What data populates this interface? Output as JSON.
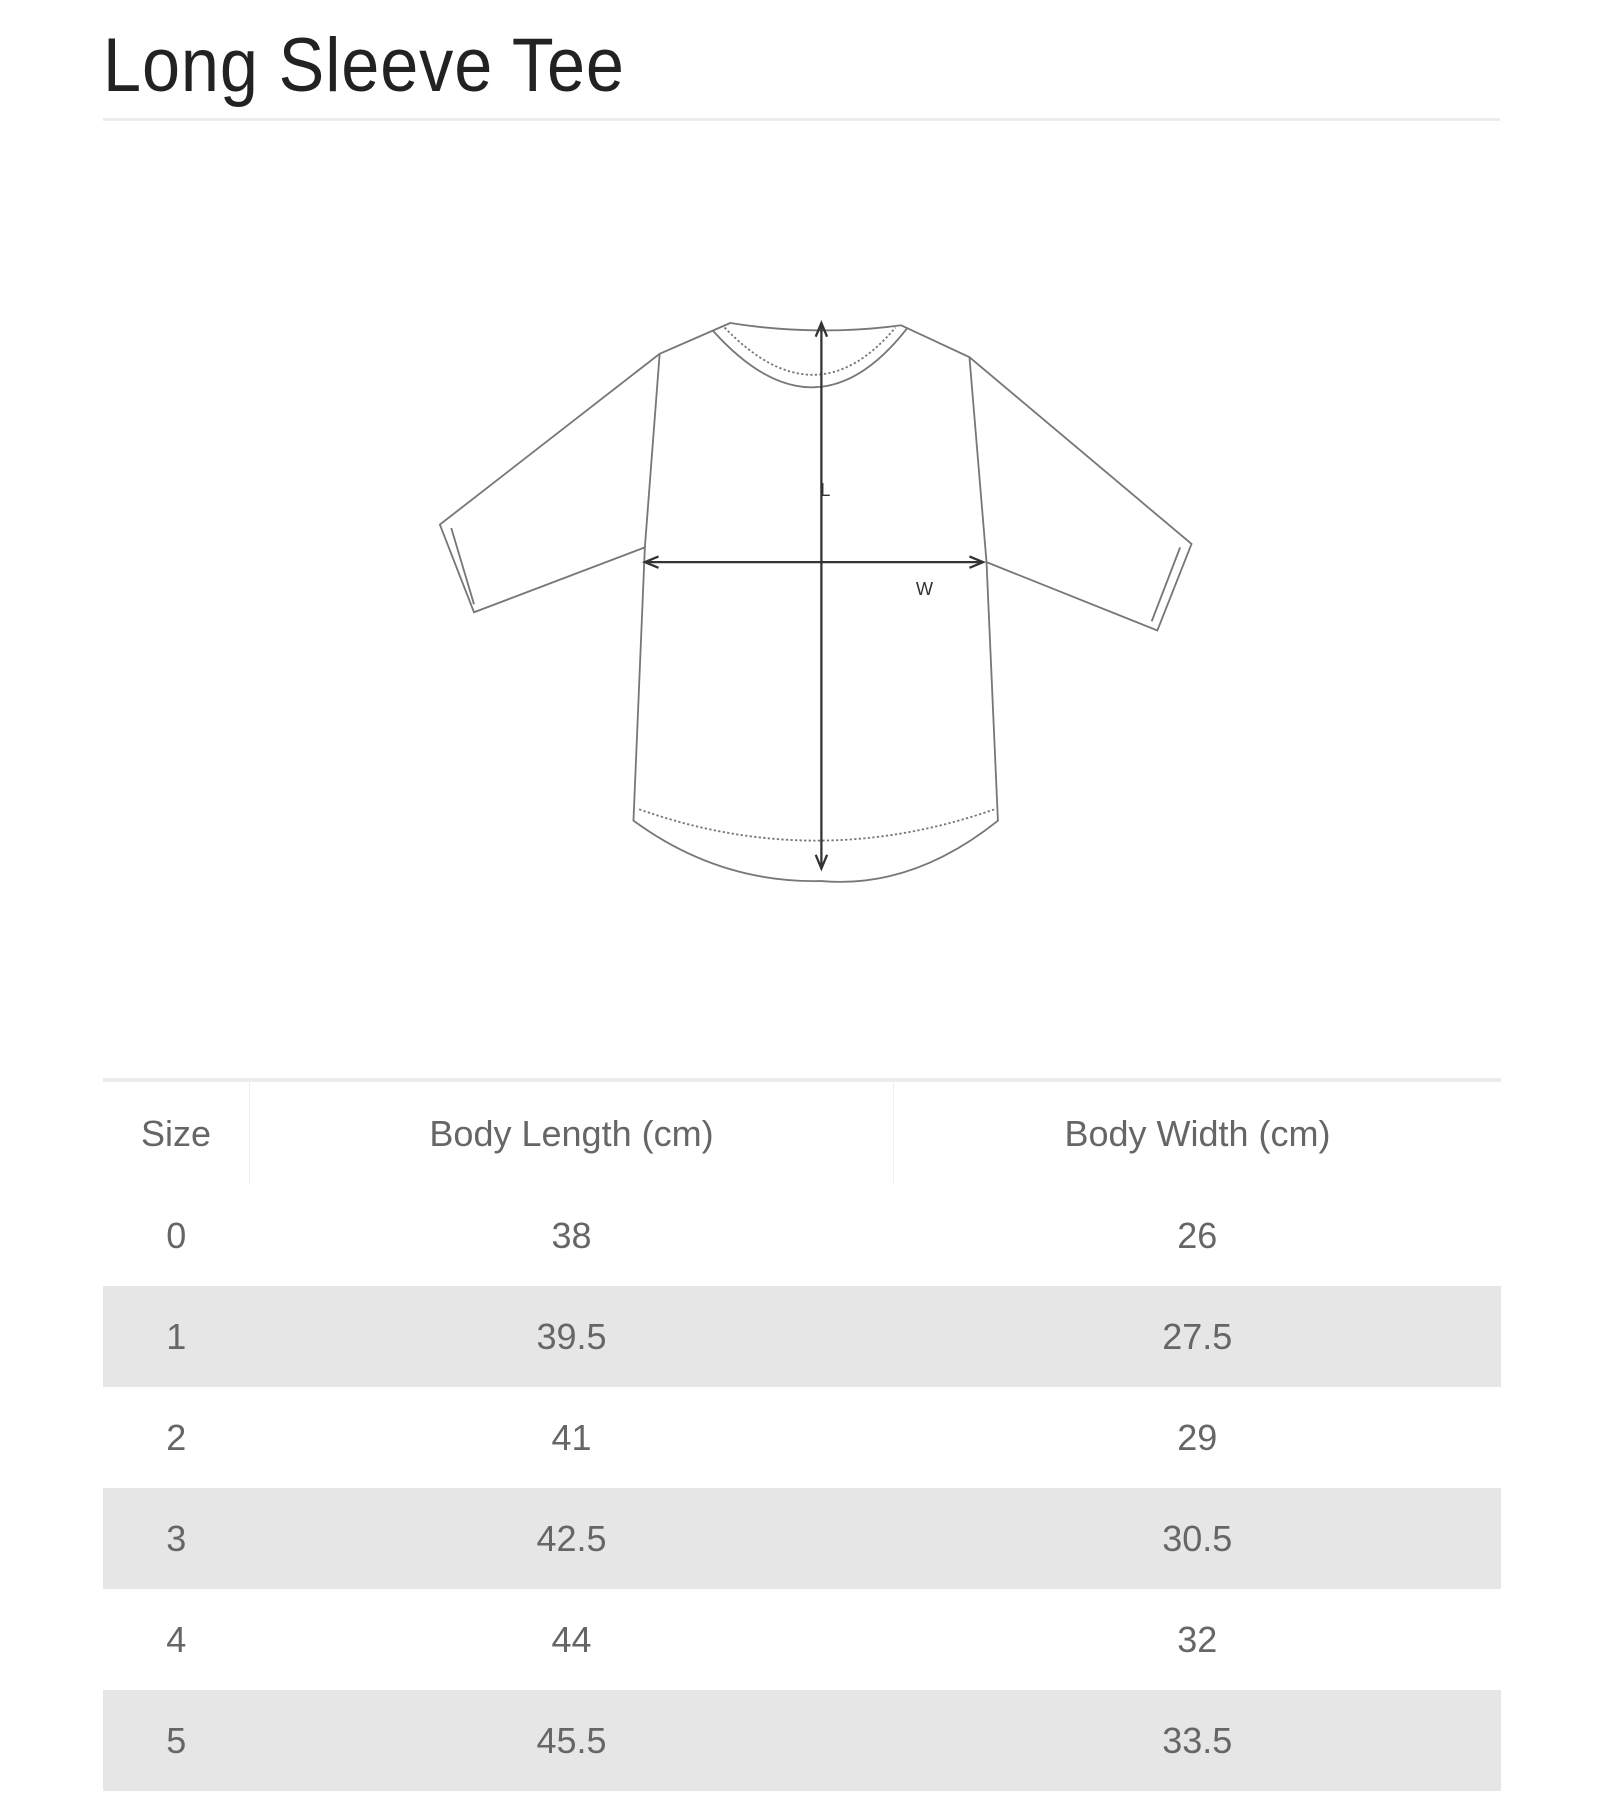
{
  "title": "Long Sleeve Tee",
  "diagram": {
    "length_label": "L",
    "width_label": "W",
    "line_color": "#777777"
  },
  "table": {
    "headers": [
      "Size",
      "Body Length (cm)",
      "Body Width (cm)"
    ],
    "rows": [
      [
        "0",
        "38",
        "26"
      ],
      [
        "1",
        "39.5",
        "27.5"
      ],
      [
        "2",
        "41",
        "29"
      ],
      [
        "3",
        "42.5",
        "30.5"
      ],
      [
        "4",
        "44",
        "32"
      ],
      [
        "5",
        "45.5",
        "33.5"
      ]
    ],
    "stripe_color": "#e6e6e6"
  }
}
